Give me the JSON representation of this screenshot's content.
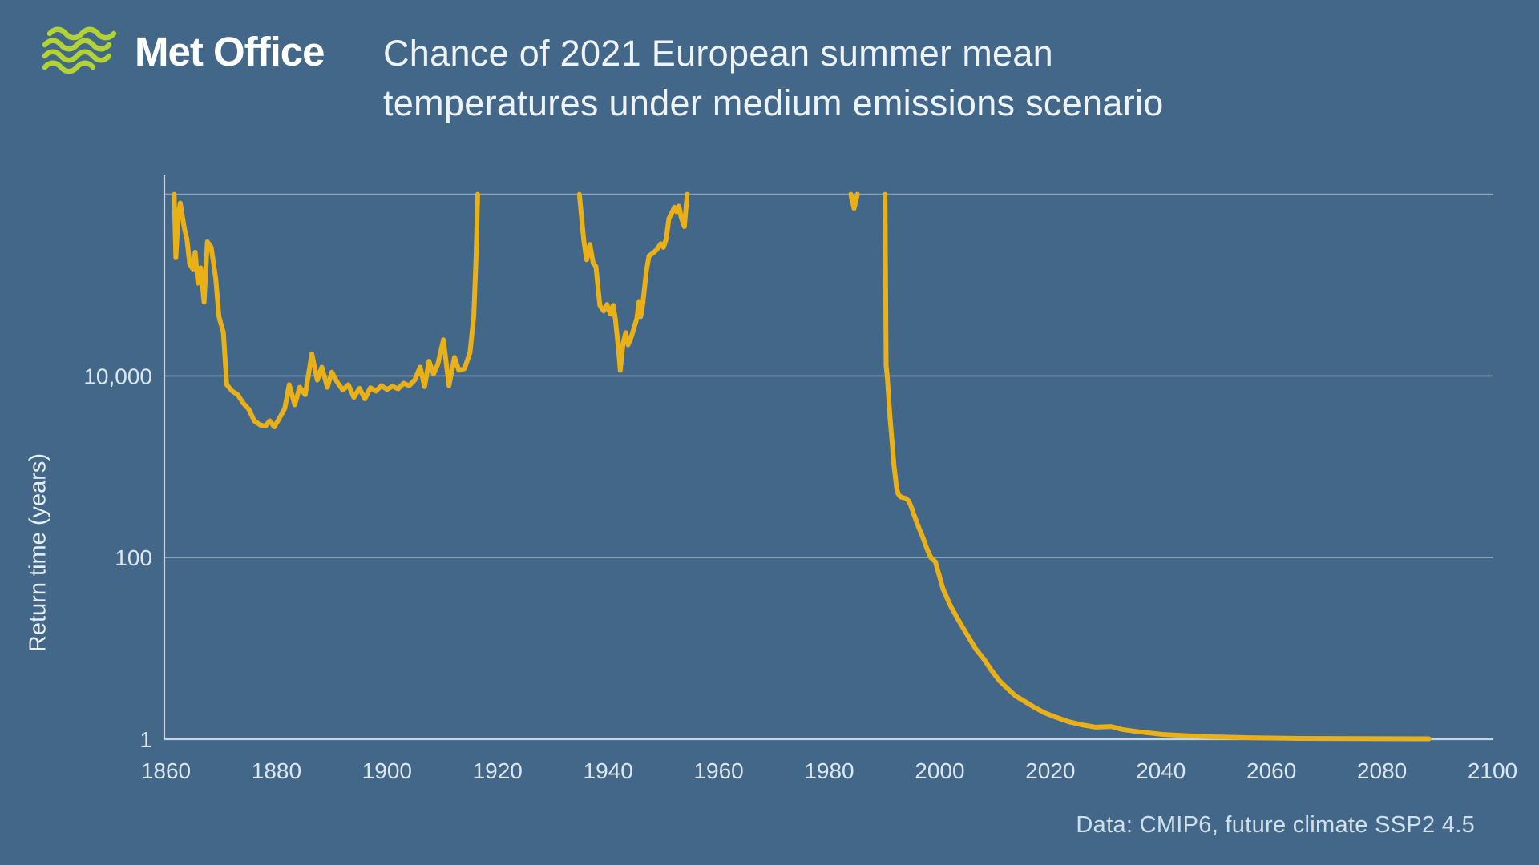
{
  "page": {
    "background_color": "#436789",
    "logo": {
      "text": "Met Office",
      "icon": "met-office-waves-icon",
      "icon_color": "#b2d235",
      "text_color": "#ffffff"
    },
    "title_line1": "Chance of 2021 European summer mean",
    "title_line2": "temperatures under medium emissions scenario",
    "footer": "Data: CMIP6, future climate SSP2 4.5"
  },
  "chart_data": {
    "type": "line",
    "title": "Chance of 2021 European summer mean temperatures under medium emissions scenario",
    "xlabel": "",
    "ylabel": "Return time (years)",
    "y_scale": "log",
    "xlim": [
      1860,
      2100
    ],
    "ylim": [
      1,
      1000000
    ],
    "x_ticks": [
      1860,
      1880,
      1900,
      1920,
      1940,
      1960,
      1980,
      2000,
      2020,
      2040,
      2060,
      2080,
      2100
    ],
    "y_ticks": [
      {
        "value": 1,
        "label": "1"
      },
      {
        "value": 100,
        "label": "100"
      },
      {
        "value": 10000,
        "label": "10,000"
      }
    ],
    "gridline_values": [
      100,
      10000,
      1000000
    ],
    "grid": "horizontal-only",
    "legend": "none",
    "line_color": "#e9b018",
    "grid_color": "#b9cedb",
    "spine_color": "#d4e1ea",
    "tick_color": "#dbe7ef",
    "clip_max": 1000000,
    "note": "line is clipped at the unlabeled 1,000,000 top gridline; gaps mean return time exceeds the scale",
    "series": [
      {
        "name": "Return time of 2021 European summer mean temperature (years)",
        "segments": [
          [
            [
              1861.5,
              1000000
            ],
            [
              1861.8,
              200000
            ],
            [
              1862.2,
              560000
            ],
            [
              1862.6,
              800000
            ],
            [
              1863.3,
              430000
            ],
            [
              1863.8,
              320000
            ],
            [
              1864.3,
              170000
            ],
            [
              1864.9,
              150000
            ],
            [
              1865.3,
              230000
            ],
            [
              1865.8,
              105000
            ],
            [
              1866.3,
              155000
            ],
            [
              1866.9,
              65000
            ],
            [
              1867.5,
              300000
            ],
            [
              1868.2,
              260000
            ],
            [
              1869.0,
              120000
            ],
            [
              1869.6,
              45000
            ],
            [
              1870.4,
              30000
            ],
            [
              1871.0,
              8000
            ],
            [
              1872.0,
              6800
            ],
            [
              1873.0,
              6200
            ],
            [
              1874.0,
              5000
            ],
            [
              1875.0,
              4300
            ],
            [
              1876.0,
              3200
            ],
            [
              1877.0,
              2900
            ],
            [
              1878.0,
              2800
            ],
            [
              1878.8,
              3200
            ],
            [
              1879.6,
              2750
            ],
            [
              1880.5,
              3400
            ],
            [
              1881.5,
              4400
            ],
            [
              1882.3,
              8000
            ],
            [
              1883.3,
              4800
            ],
            [
              1884.2,
              7500
            ],
            [
              1885.2,
              6200
            ],
            [
              1886.4,
              17500
            ],
            [
              1887.4,
              9000
            ],
            [
              1888.2,
              12500
            ],
            [
              1889.2,
              7500
            ],
            [
              1890.0,
              11000
            ],
            [
              1891.0,
              8500
            ],
            [
              1892.0,
              7000
            ],
            [
              1893.0,
              8000
            ],
            [
              1894.0,
              5800
            ],
            [
              1895.0,
              7300
            ],
            [
              1896.0,
              5600
            ],
            [
              1897.0,
              7400
            ],
            [
              1898.0,
              6800
            ],
            [
              1899.0,
              7800
            ],
            [
              1900.0,
              7100
            ],
            [
              1901.0,
              7700
            ],
            [
              1902.0,
              7200
            ],
            [
              1903.0,
              8300
            ],
            [
              1904.0,
              7800
            ],
            [
              1905.0,
              9000
            ],
            [
              1906.0,
              12500
            ],
            [
              1906.8,
              7600
            ],
            [
              1907.6,
              14500
            ],
            [
              1908.4,
              10500
            ],
            [
              1909.2,
              13500
            ],
            [
              1910.2,
              25000
            ],
            [
              1911.2,
              7800
            ],
            [
              1912.2,
              16000
            ],
            [
              1913.0,
              11500
            ],
            [
              1914.0,
              12000
            ],
            [
              1915.0,
              18000
            ],
            [
              1915.7,
              46000
            ],
            [
              1916.1,
              200000
            ],
            [
              1916.4,
              1000000
            ]
          ],
          [
            [
              1934.8,
              1000000
            ],
            [
              1935.6,
              310000
            ],
            [
              1936.1,
              190000
            ],
            [
              1936.7,
              280000
            ],
            [
              1937.3,
              175000
            ],
            [
              1937.8,
              160000
            ],
            [
              1938.5,
              60000
            ],
            [
              1939.2,
              52000
            ],
            [
              1939.8,
              61000
            ],
            [
              1940.4,
              48000
            ],
            [
              1940.9,
              60000
            ],
            [
              1941.3,
              43000
            ],
            [
              1941.9,
              19000
            ],
            [
              1942.2,
              11500
            ],
            [
              1942.7,
              23000
            ],
            [
              1943.2,
              30000
            ],
            [
              1943.6,
              22000
            ],
            [
              1944.2,
              27000
            ],
            [
              1944.7,
              34000
            ],
            [
              1945.2,
              43000
            ],
            [
              1945.6,
              66000
            ],
            [
              1945.9,
              45000
            ],
            [
              1946.3,
              64000
            ],
            [
              1946.9,
              140000
            ],
            [
              1947.4,
              210000
            ],
            [
              1948.1,
              225000
            ],
            [
              1948.8,
              245000
            ],
            [
              1949.5,
              285000
            ],
            [
              1950.0,
              260000
            ],
            [
              1950.5,
              320000
            ],
            [
              1951.0,
              540000
            ],
            [
              1951.5,
              620000
            ],
            [
              1952.0,
              720000
            ],
            [
              1952.4,
              640000
            ],
            [
              1952.8,
              740000
            ],
            [
              1953.2,
              560000
            ],
            [
              1953.8,
              440000
            ],
            [
              1954.3,
              1000000
            ]
          ],
          [
            [
              1983.9,
              1000000
            ],
            [
              1984.5,
              700000
            ],
            [
              1985.1,
              1000000
            ]
          ],
          [
            [
              1990.1,
              1000000
            ],
            [
              1990.3,
              13000
            ],
            [
              1990.5,
              10000
            ],
            [
              1991.0,
              3500
            ],
            [
              1991.4,
              1800
            ],
            [
              1991.7,
              1050
            ],
            [
              1992.0,
              750
            ],
            [
              1992.2,
              580
            ],
            [
              1992.5,
              500
            ],
            [
              1992.9,
              465
            ],
            [
              1993.8,
              450
            ],
            [
              1994.4,
              420
            ],
            [
              1994.9,
              355
            ],
            [
              1995.3,
              300
            ],
            [
              1995.8,
              250
            ],
            [
              1996.3,
              207
            ],
            [
              1996.8,
              176
            ],
            [
              1997.3,
              145
            ],
            [
              1997.8,
              120
            ],
            [
              1998.4,
              100
            ],
            [
              1999.2,
              90
            ],
            [
              2000.6,
              45
            ],
            [
              2002.0,
              29
            ],
            [
              2003.5,
              20
            ],
            [
              2005.0,
              14
            ],
            [
              2006.5,
              9.9
            ],
            [
              2008.0,
              7.6
            ],
            [
              2009.4,
              5.7
            ],
            [
              2010.8,
              4.4
            ],
            [
              2012.3,
              3.6
            ],
            [
              2013.7,
              3.0
            ],
            [
              2015.2,
              2.65
            ],
            [
              2017.1,
              2.25
            ],
            [
              2019.0,
              1.95
            ],
            [
              2021.0,
              1.75
            ],
            [
              2023.3,
              1.56
            ],
            [
              2025.7,
              1.44
            ],
            [
              2028.2,
              1.36
            ],
            [
              2031.0,
              1.38
            ],
            [
              2033.0,
              1.28
            ],
            [
              2035.4,
              1.22
            ],
            [
              2040.3,
              1.13
            ],
            [
              2045.0,
              1.09
            ],
            [
              2050.0,
              1.06
            ],
            [
              2056.0,
              1.04
            ],
            [
              2065.0,
              1.02
            ],
            [
              2076.0,
              1.015
            ],
            [
              2088.5,
              1.01
            ]
          ]
        ]
      }
    ]
  }
}
